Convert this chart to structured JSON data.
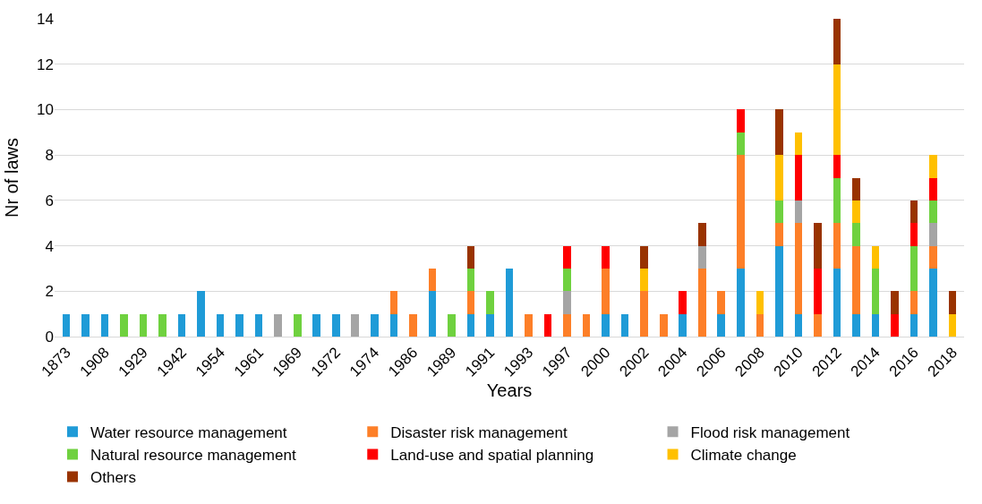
{
  "chart_data": {
    "type": "bar",
    "stacked": true,
    "xlabel": "Years",
    "ylabel": "Nr of laws",
    "categories": [
      "1873",
      null,
      "1908",
      null,
      "1929",
      null,
      "1942",
      null,
      "1954",
      null,
      "1961",
      null,
      "1969",
      null,
      "1972",
      null,
      "1974",
      null,
      "1986",
      null,
      "1989",
      null,
      "1991",
      null,
      "1993",
      null,
      "1997",
      null,
      "2000",
      null,
      "2002",
      null,
      "2004",
      null,
      "2006",
      null,
      "2008",
      null,
      "2010",
      null,
      "2012",
      null,
      "2014",
      null,
      "2016",
      null,
      "2018"
    ],
    "series": [
      {
        "name": "Water resource management",
        "color": "#1f9bd7",
        "values": [
          1,
          1,
          1,
          0,
          0,
          0,
          1,
          2,
          1,
          1,
          1,
          0,
          0,
          1,
          1,
          0,
          1,
          1,
          0,
          2,
          0,
          1,
          1,
          3,
          0,
          0,
          0,
          0,
          1,
          1,
          0,
          0,
          1,
          0,
          1,
          3,
          0,
          4,
          1,
          0,
          3,
          1,
          1,
          0,
          1,
          3,
          0
        ]
      },
      {
        "name": "Disaster risk management",
        "color": "#fd7f28",
        "values": [
          0,
          0,
          0,
          0,
          0,
          0,
          0,
          0,
          0,
          0,
          0,
          0,
          0,
          0,
          0,
          0,
          0,
          1,
          1,
          1,
          0,
          1,
          0,
          0,
          1,
          0,
          1,
          1,
          2,
          0,
          2,
          1,
          0,
          3,
          1,
          5,
          1,
          1,
          4,
          1,
          2,
          3,
          0,
          0,
          1,
          1,
          0
        ]
      },
      {
        "name": "Flood risk management",
        "color": "#a5a5a5",
        "values": [
          0,
          0,
          0,
          0,
          0,
          0,
          0,
          0,
          0,
          0,
          0,
          1,
          0,
          0,
          0,
          1,
          0,
          0,
          0,
          0,
          0,
          0,
          0,
          0,
          0,
          0,
          1,
          0,
          0,
          0,
          0,
          0,
          0,
          1,
          0,
          0,
          0,
          0,
          1,
          0,
          0,
          0,
          0,
          0,
          0,
          1,
          0
        ]
      },
      {
        "name": "Natural resource management",
        "color": "#6fd13f",
        "values": [
          0,
          0,
          0,
          1,
          1,
          1,
          0,
          0,
          0,
          0,
          0,
          0,
          1,
          0,
          0,
          0,
          0,
          0,
          0,
          0,
          1,
          1,
          1,
          0,
          0,
          0,
          1,
          0,
          0,
          0,
          0,
          0,
          0,
          0,
          0,
          1,
          0,
          1,
          0,
          0,
          2,
          1,
          2,
          0,
          2,
          1,
          0
        ]
      },
      {
        "name": "Land-use and spatial planning",
        "color": "#ff0000",
        "values": [
          0,
          0,
          0,
          0,
          0,
          0,
          0,
          0,
          0,
          0,
          0,
          0,
          0,
          0,
          0,
          0,
          0,
          0,
          0,
          0,
          0,
          0,
          0,
          0,
          0,
          1,
          1,
          0,
          1,
          0,
          0,
          0,
          1,
          0,
          0,
          1,
          0,
          0,
          2,
          2,
          1,
          0,
          0,
          1,
          1,
          1,
          0
        ]
      },
      {
        "name": "Climate change",
        "color": "#ffc000",
        "values": [
          0,
          0,
          0,
          0,
          0,
          0,
          0,
          0,
          0,
          0,
          0,
          0,
          0,
          0,
          0,
          0,
          0,
          0,
          0,
          0,
          0,
          0,
          0,
          0,
          0,
          0,
          0,
          0,
          0,
          0,
          1,
          0,
          0,
          0,
          0,
          0,
          1,
          2,
          1,
          0,
          4,
          1,
          1,
          0,
          0,
          1,
          1
        ]
      },
      {
        "name": "Others",
        "color": "#993300",
        "values": [
          0,
          0,
          0,
          0,
          0,
          0,
          0,
          0,
          0,
          0,
          0,
          0,
          0,
          0,
          0,
          0,
          0,
          0,
          0,
          0,
          0,
          1,
          0,
          0,
          0,
          0,
          0,
          0,
          0,
          0,
          1,
          0,
          0,
          1,
          0,
          0,
          0,
          2,
          0,
          2,
          2,
          1,
          0,
          1,
          1,
          0,
          1
        ]
      }
    ],
    "ylim": [
      0,
      14
    ],
    "yticks": [
      0,
      2,
      4,
      6,
      8,
      10,
      12,
      14
    ],
    "grid": "y",
    "legend": "bottom"
  }
}
